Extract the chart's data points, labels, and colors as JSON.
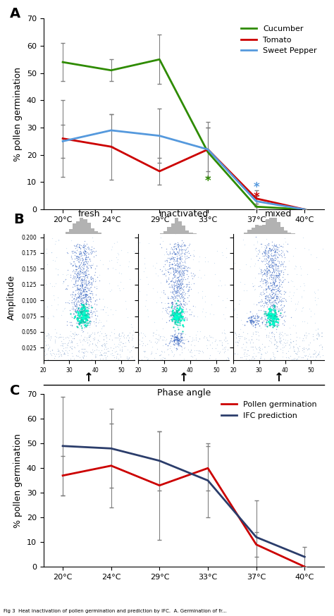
{
  "panel_A": {
    "temps": [
      20,
      24,
      29,
      33,
      37,
      40
    ],
    "cucumber_y": [
      54,
      51,
      55,
      21,
      1,
      0
    ],
    "cucumber_err": [
      7,
      4,
      9,
      9,
      1,
      0
    ],
    "tomato_y": [
      26,
      23,
      14,
      22,
      4,
      0
    ],
    "tomato_err": [
      14,
      12,
      5,
      10,
      3,
      0
    ],
    "pepper_y": [
      25,
      29,
      27,
      22,
      3,
      0
    ],
    "pepper_err": [
      6,
      6,
      10,
      8,
      2,
      0
    ],
    "ylim": [
      0,
      70
    ],
    "yticks": [
      0,
      10,
      20,
      30,
      40,
      50,
      60,
      70
    ],
    "ylabel": "% pollen germination",
    "xlabel_temps": [
      "20°C",
      "24°C",
      "29°C",
      "33°C",
      "37°C",
      "40°C"
    ],
    "cucumber_color": "#2e8b00",
    "tomato_color": "#cc0000",
    "pepper_color": "#5599dd",
    "legend_labels": [
      "Cucumber",
      "Tomato",
      "Sweet Pepper"
    ]
  },
  "panel_B": {
    "titles": [
      "fresh",
      "inactivated",
      "mixed"
    ],
    "xlabel": "Phase angle"
  },
  "panel_C": {
    "temps": [
      20,
      24,
      29,
      33,
      37,
      40
    ],
    "pollen_y": [
      37,
      41,
      33,
      40,
      9,
      0
    ],
    "pollen_err": [
      8,
      17,
      22,
      9,
      5,
      0
    ],
    "ifc_y": [
      49,
      48,
      43,
      35,
      12,
      4
    ],
    "ifc_err": [
      20,
      16,
      12,
      15,
      15,
      4
    ],
    "ylim": [
      0,
      70
    ],
    "yticks": [
      0,
      10,
      20,
      30,
      40,
      50,
      60,
      70
    ],
    "ylabel": "% pollen germination",
    "xlabel_temps": [
      "20°C",
      "24°C",
      "29°C",
      "33°C",
      "37°C",
      "40°C"
    ],
    "pollen_color": "#cc0000",
    "ifc_color": "#2b3d6b",
    "legend_labels": [
      "Pollen germination",
      "IFC prediction"
    ]
  },
  "panel_label_fontsize": 14,
  "axis_label_fontsize": 9,
  "tick_fontsize": 8,
  "legend_fontsize": 8,
  "line_width": 2.0,
  "bg_color": "#ffffff"
}
